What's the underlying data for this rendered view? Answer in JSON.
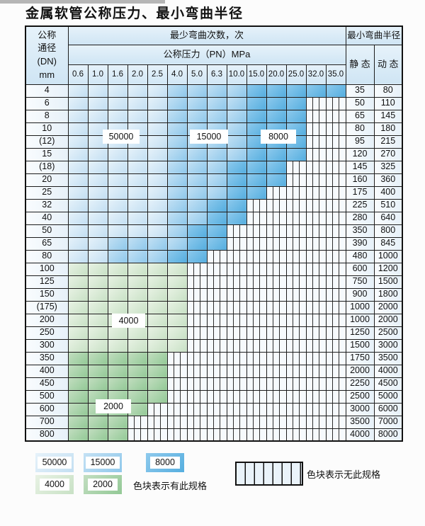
{
  "title": "金属软管公称压力、最小弯曲半径",
  "table": {
    "header": {
      "dn_label_lines": [
        "公称",
        "通径",
        "(DN)",
        "mm"
      ],
      "bend_cycles_label": "最少弯曲次数，次",
      "pressure_label": "公称压力（PN）MPa",
      "radius_label": "最小弯曲半径",
      "static_label": "静 态",
      "dynamic_label": "动 态",
      "pressure_columns": [
        "0.6",
        "1.0",
        "1.6",
        "2.0",
        "2.5",
        "4.0",
        "5.0",
        "6.3",
        "10.0",
        "15.0",
        "20.0",
        "25.0",
        "32.0",
        "35.0"
      ]
    },
    "shade_values": {
      "b1": "50000",
      "b2": "15000",
      "b3": "8000",
      "g1": "4000",
      "g2": "2000"
    },
    "shade_colors": {
      "b1": "#c8e2f4",
      "b2": "#9fd0ee",
      "b3": "#6bbae6",
      "g1": "#d7e9d4",
      "g2": "#a5d2a6"
    },
    "rows": [
      {
        "dn": "4",
        "spans": [
          [
            "b1",
            5
          ],
          [
            "b2",
            4
          ],
          [
            "b3",
            5
          ]
        ],
        "static": "35",
        "dynamic": "80"
      },
      {
        "dn": "6",
        "spans": [
          [
            "b1",
            5
          ],
          [
            "b2",
            4
          ],
          [
            "b3",
            3
          ]
        ],
        "static": "50",
        "dynamic": "110"
      },
      {
        "dn": "8",
        "spans": [
          [
            "b1",
            5
          ],
          [
            "b2",
            4
          ],
          [
            "b3",
            3
          ]
        ],
        "static": "65",
        "dynamic": "145"
      },
      {
        "dn": "10",
        "spans": [
          [
            "b1",
            5
          ],
          [
            "b2",
            4
          ],
          [
            "b3",
            3
          ]
        ],
        "static": "80",
        "dynamic": "180"
      },
      {
        "dn": "(12)",
        "spans": [
          [
            "b1",
            5
          ],
          [
            "b2",
            4
          ],
          [
            "b3",
            3
          ]
        ],
        "static": "95",
        "dynamic": "215"
      },
      {
        "dn": "15",
        "spans": [
          [
            "b1",
            5
          ],
          [
            "b2",
            4
          ],
          [
            "b3",
            3
          ]
        ],
        "static": "120",
        "dynamic": "270"
      },
      {
        "dn": "(18)",
        "spans": [
          [
            "b1",
            5
          ],
          [
            "b2",
            3
          ],
          [
            "b3",
            3
          ]
        ],
        "static": "145",
        "dynamic": "325"
      },
      {
        "dn": "20",
        "spans": [
          [
            "b1",
            5
          ],
          [
            "b2",
            3
          ],
          [
            "b3",
            3
          ]
        ],
        "static": "160",
        "dynamic": "360"
      },
      {
        "dn": "25",
        "spans": [
          [
            "b1",
            5
          ],
          [
            "b2",
            3
          ],
          [
            "b3",
            2
          ]
        ],
        "static": "175",
        "dynamic": "400"
      },
      {
        "dn": "32",
        "spans": [
          [
            "b1",
            5
          ],
          [
            "b2",
            2
          ],
          [
            "b3",
            2
          ]
        ],
        "static": "225",
        "dynamic": "510"
      },
      {
        "dn": "40",
        "spans": [
          [
            "b1",
            5
          ],
          [
            "b2",
            2
          ],
          [
            "b3",
            2
          ]
        ],
        "static": "280",
        "dynamic": "640"
      },
      {
        "dn": "50",
        "spans": [
          [
            "b1",
            5
          ],
          [
            "b2",
            1
          ],
          [
            "b3",
            2
          ]
        ],
        "static": "350",
        "dynamic": "800"
      },
      {
        "dn": "65",
        "spans": [
          [
            "b1",
            2
          ],
          [
            "b2",
            4
          ],
          [
            "b3",
            2
          ]
        ],
        "static": "390",
        "dynamic": "845"
      },
      {
        "dn": "80",
        "spans": [
          [
            "b1",
            2
          ],
          [
            "b2",
            3
          ],
          [
            "b3",
            2
          ]
        ],
        "static": "480",
        "dynamic": "1000"
      },
      {
        "dn": "100",
        "spans": [
          [
            "g1",
            6
          ]
        ],
        "static": "600",
        "dynamic": "1200"
      },
      {
        "dn": "125",
        "spans": [
          [
            "g1",
            6
          ]
        ],
        "static": "750",
        "dynamic": "1500"
      },
      {
        "dn": "150",
        "spans": [
          [
            "g1",
            6
          ]
        ],
        "static": "900",
        "dynamic": "1800"
      },
      {
        "dn": "(175)",
        "spans": [
          [
            "g1",
            6
          ]
        ],
        "static": "1000",
        "dynamic": "2000"
      },
      {
        "dn": "200",
        "spans": [
          [
            "g1",
            6
          ]
        ],
        "static": "1000",
        "dynamic": "2000"
      },
      {
        "dn": "250",
        "spans": [
          [
            "g1",
            6
          ]
        ],
        "static": "1250",
        "dynamic": "2500"
      },
      {
        "dn": "300",
        "spans": [
          [
            "g1",
            6
          ]
        ],
        "static": "1500",
        "dynamic": "3000"
      },
      {
        "dn": "350",
        "spans": [
          [
            "g2",
            5
          ]
        ],
        "static": "1750",
        "dynamic": "3500"
      },
      {
        "dn": "400",
        "spans": [
          [
            "g2",
            5
          ]
        ],
        "static": "2000",
        "dynamic": "4000"
      },
      {
        "dn": "450",
        "spans": [
          [
            "g2",
            5
          ]
        ],
        "static": "2250",
        "dynamic": "4500"
      },
      {
        "dn": "500",
        "spans": [
          [
            "g2",
            5
          ]
        ],
        "static": "2500",
        "dynamic": "5000"
      },
      {
        "dn": "600",
        "spans": [
          [
            "g2",
            4
          ]
        ],
        "static": "3000",
        "dynamic": "6000"
      },
      {
        "dn": "700",
        "spans": [
          [
            "g2",
            3
          ]
        ],
        "static": "3500",
        "dynamic": "7000"
      },
      {
        "dn": "800",
        "spans": [
          [
            "g2",
            3
          ]
        ],
        "static": "4000",
        "dynamic": "8000"
      }
    ]
  },
  "overlays": [
    {
      "text": "50000"
    },
    {
      "text": "15000"
    },
    {
      "text": "8000"
    },
    {
      "text": "4000"
    },
    {
      "text": "2000"
    }
  ],
  "legend": {
    "items": [
      {
        "value": "50000",
        "shade": "b1"
      },
      {
        "value": "15000",
        "shade": "b2"
      },
      {
        "value": "8000",
        "shade": "b3"
      },
      {
        "value": "4000",
        "shade": "g1"
      },
      {
        "value": "2000",
        "shade": "g2"
      }
    ],
    "has_spec_text": "色块表示有此规格",
    "no_spec_text": "色块表示无此规格"
  }
}
